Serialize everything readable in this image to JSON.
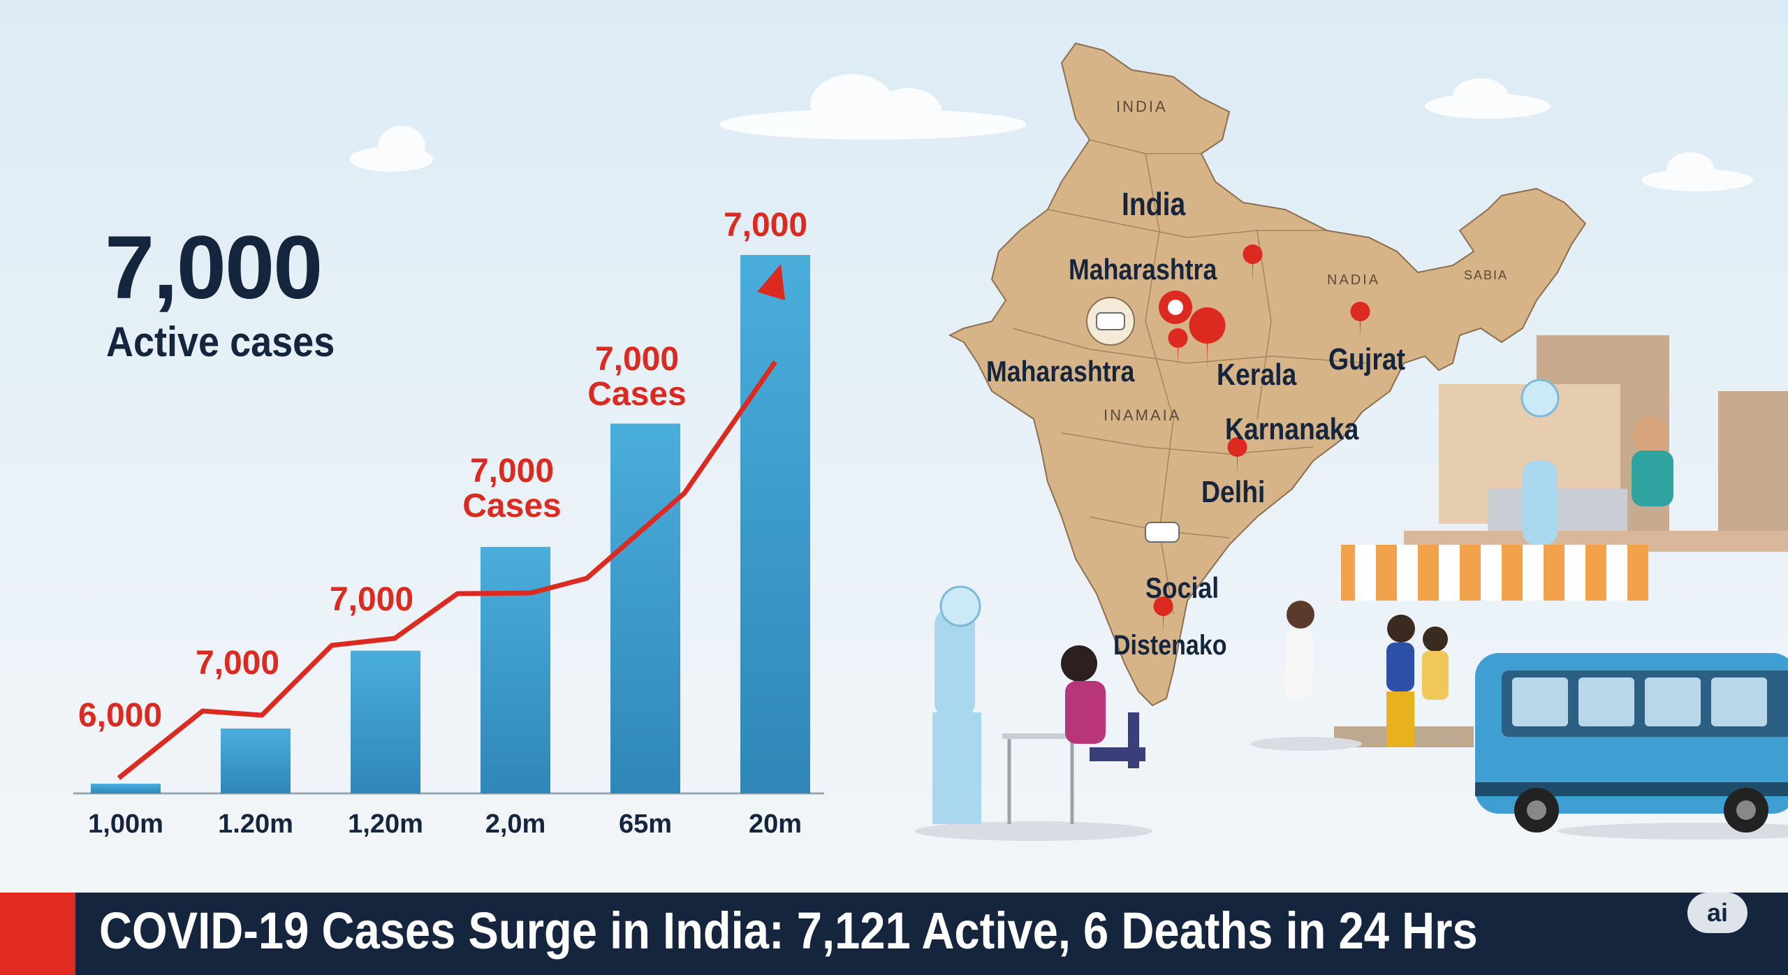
{
  "headline": {
    "value": "7,000",
    "label": "Active cases"
  },
  "banner": {
    "title": "COVID-19 Cases Surge in India: 7,121 Active, 6 Deaths in 24 Hrs",
    "badge": "ai"
  },
  "map": {
    "labels": {
      "india_top": "INDIA",
      "india": "India",
      "maharashtra_top": "Maharashtra",
      "nadia": "NADIA",
      "sabia": "SABIA",
      "maharashtra": "Maharashtra",
      "kerala": "Kerala",
      "gujrat": "Gujrat",
      "inamaia": "INAMAIA",
      "karnanaka": "Karnanaka",
      "delhi": "Delhi",
      "social": "Social",
      "distenako": "Distenako"
    }
  },
  "colors": {
    "bar": "#3f9fd2",
    "trend": "#dc2a20",
    "navy": "#14253d",
    "map_fill": "#d7b487"
  },
  "chart_data": {
    "type": "bar",
    "categories": [
      "1,00m",
      "1.20m",
      "1,20m",
      "2,0m",
      "65m",
      "20m"
    ],
    "values": [
      150,
      1000,
      2200,
      3800,
      5700,
      8300
    ],
    "trend_line_labels": [
      "6,000",
      "7,000",
      "7,000",
      "7,000 Cases",
      "7,000 Cases",
      "7,000"
    ],
    "ylim": [
      0,
      9000
    ],
    "grid": false,
    "xlabel": "",
    "ylabel": ""
  }
}
